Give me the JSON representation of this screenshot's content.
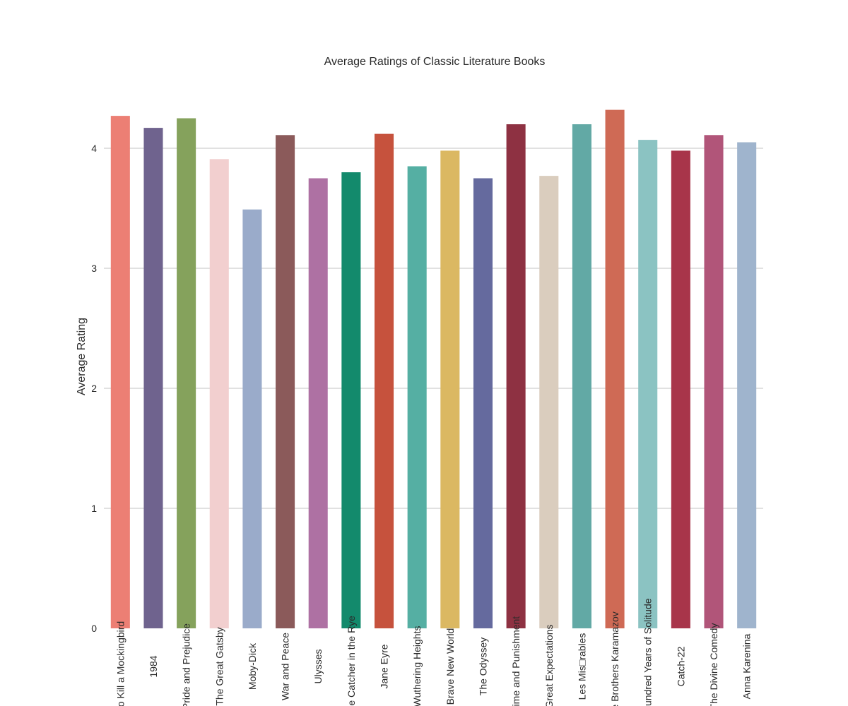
{
  "chart_data": {
    "type": "bar",
    "title": "Average Ratings of Classic Literature Books",
    "xlabel": "",
    "ylabel": "Average Rating",
    "ylim": [
      0,
      4.4
    ],
    "yticks": [
      0,
      1,
      2,
      3,
      4
    ],
    "grid": true,
    "categories": [
      "To Kill a Mockingbird",
      "1984",
      "Pride and Prejudice",
      "The Great Gatsby",
      "Moby-Dick",
      "War and Peace",
      "Ulysses",
      "The Catcher in the Rye",
      "Jane Eyre",
      "Wuthering Heights",
      "Brave New World",
      "The Odyssey",
      "Crime and Punishment",
      "Great Expectations",
      "Les Mis□rables",
      "The Brothers Karamazov",
      "One Hundred Years of Solitude",
      "Catch-22",
      "The Divine Comedy",
      "Anna Karenina"
    ],
    "values": [
      4.27,
      4.17,
      4.25,
      3.91,
      3.49,
      4.11,
      3.75,
      3.8,
      4.12,
      3.85,
      3.98,
      3.75,
      4.2,
      3.77,
      4.2,
      4.32,
      4.07,
      3.98,
      4.11,
      4.05
    ],
    "colors": [
      "#EC7F74",
      "#6F638E",
      "#85A25C",
      "#F2CFCF",
      "#9AABCA",
      "#8B5A5A",
      "#AE71A3",
      "#138A6C",
      "#C6523D",
      "#55AFA3",
      "#DBB862",
      "#656A9E",
      "#8E3142",
      "#DACDBE",
      "#62A9A5",
      "#CF6A55",
      "#8BC3C2",
      "#A8354A",
      "#B15579",
      "#9FB4CD"
    ]
  }
}
